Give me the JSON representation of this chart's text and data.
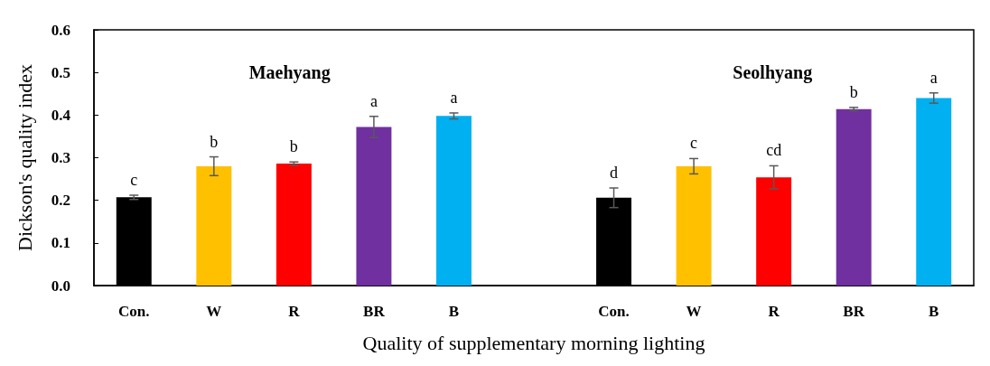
{
  "chart_data": {
    "type": "bar",
    "xlabel": "Quality of supplementary morning lighting",
    "ylabel": "Dickson's quality index",
    "categories": [
      "Con.",
      "W",
      "R",
      "BR",
      "B",
      null,
      "Con.",
      "W",
      "R",
      "BR",
      "B"
    ],
    "values": [
      0.207,
      0.28,
      0.286,
      0.372,
      0.398,
      null,
      0.206,
      0.28,
      0.254,
      0.414,
      0.44
    ],
    "colors": [
      "#000000",
      "#ffc000",
      "#ff0000",
      "#7030a0",
      "#00b0f0",
      null,
      "#000000",
      "#ffc000",
      "#ff0000",
      "#7030a0",
      "#00b0f0"
    ],
    "errors": [
      0.005,
      0.022,
      0.004,
      0.025,
      0.007,
      null,
      0.023,
      0.018,
      0.027,
      0.004,
      0.012
    ],
    "value_labels": [
      "c",
      "b",
      "b",
      "a",
      "a",
      null,
      "d",
      "c",
      "cd",
      "b",
      "a"
    ],
    "annotations": [
      "Maehyang",
      "Seolhyang"
    ],
    "ylim": [
      0,
      0.6
    ],
    "yticks": [
      {
        "value": 0,
        "label": "0.0"
      },
      {
        "value": 0.1,
        "label": "0.1"
      },
      {
        "value": 0.2,
        "label": "0.2"
      },
      {
        "value": 0.3,
        "label": "0.3"
      },
      {
        "value": 0.4,
        "label": "0.4"
      },
      {
        "value": 0.5,
        "label": "0.5"
      },
      {
        "value": 0.6,
        "label": "0.6"
      }
    ],
    "grid": false
  }
}
